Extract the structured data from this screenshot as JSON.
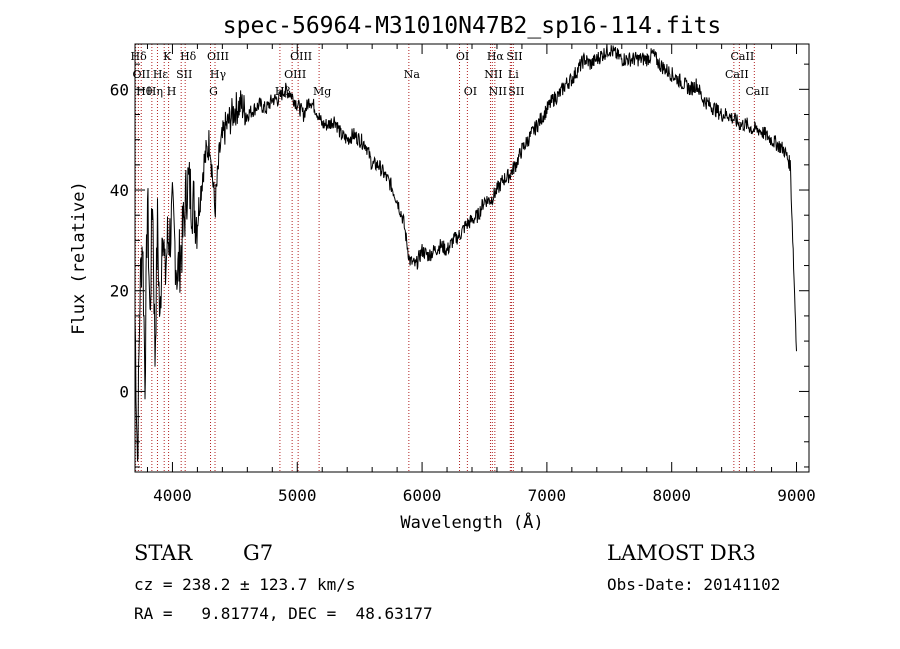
{
  "chart_data": {
    "type": "line",
    "title": "spec-56964-M31010N47B2_sp16-114.fits",
    "xlabel": "Wavelength (Å)",
    "ylabel": "Flux (relative)",
    "xlim": [
      3700,
      9100
    ],
    "ylim": [
      -16,
      69
    ],
    "x_ticks": [
      4000,
      5000,
      6000,
      7000,
      8000,
      9000
    ],
    "x_tick_labels": [
      "4000",
      "5000",
      "6000",
      "7000",
      "8000",
      "9000"
    ],
    "y_ticks": [
      0,
      20,
      40,
      60
    ],
    "y_tick_labels": [
      "0",
      "20",
      "40",
      "60"
    ],
    "series": [
      {
        "name": "spectrum",
        "color": "#000000",
        "x": [
          3700,
          3720,
          3740,
          3760,
          3780,
          3800,
          3820,
          3840,
          3860,
          3880,
          3900,
          3920,
          3940,
          3960,
          3980,
          4000,
          4040,
          4080,
          4120,
          4160,
          4200,
          4250,
          4300,
          4340,
          4380,
          4420,
          4460,
          4500,
          4550,
          4600,
          4650,
          4700,
          4750,
          4800,
          4850,
          4900,
          4950,
          5000,
          5050,
          5100,
          5150,
          5200,
          5250,
          5300,
          5350,
          5400,
          5450,
          5500,
          5550,
          5600,
          5650,
          5700,
          5750,
          5800,
          5850,
          5900,
          5950,
          6000,
          6050,
          6100,
          6150,
          6200,
          6250,
          6300,
          6350,
          6400,
          6450,
          6500,
          6550,
          6600,
          6650,
          6700,
          6750,
          6800,
          6850,
          6900,
          6950,
          7000,
          7050,
          7100,
          7150,
          7200,
          7250,
          7300,
          7350,
          7400,
          7450,
          7500,
          7550,
          7600,
          7650,
          7700,
          7750,
          7800,
          7850,
          7900,
          7950,
          8000,
          8050,
          8100,
          8150,
          8200,
          8250,
          8300,
          8350,
          8400,
          8450,
          8500,
          8550,
          8600,
          8650,
          8700,
          8750,
          8800,
          8850,
          8900,
          8950,
          9000
        ],
        "y": [
          15,
          -14,
          20,
          31,
          3,
          39,
          14,
          40,
          7,
          33,
          12,
          36,
          22,
          30,
          31,
          35,
          23,
          30,
          42,
          38,
          34,
          45,
          50,
          36,
          48,
          52,
          54,
          56,
          57,
          55,
          56,
          57,
          56,
          58,
          58,
          60,
          59,
          57,
          55,
          58,
          56,
          53,
          53,
          54,
          51,
          50,
          51,
          50,
          49,
          45,
          45,
          43,
          41,
          38,
          34,
          26,
          25,
          28,
          27,
          28,
          29,
          28,
          30,
          31,
          33,
          34,
          35,
          38,
          38,
          40,
          42,
          43,
          45,
          48,
          50,
          52,
          54,
          56,
          58,
          59,
          61,
          62,
          64,
          66,
          65,
          66,
          67,
          68,
          67,
          66,
          66,
          66,
          66,
          66,
          67,
          65,
          64,
          63,
          62,
          61,
          60,
          61,
          58,
          57,
          56,
          55,
          55,
          54,
          53,
          53,
          52,
          52,
          51,
          50,
          49,
          48,
          45,
          8
        ]
      }
    ],
    "line_color": "#b22222",
    "emission_lines": [
      {
        "name": "Hδ",
        "wl": 3705,
        "row": 0
      },
      {
        "name": "OII",
        "wl": 3727,
        "row": 1
      },
      {
        "name": "Hθ",
        "wl": 3750,
        "row": 2
      },
      {
        "name": "Hη",
        "wl": 3835,
        "row": 2
      },
      {
        "name": "Hε",
        "wl": 3880,
        "row": 1
      },
      {
        "name": "K",
        "wl": 3934,
        "row": 0
      },
      {
        "name": "H",
        "wl": 3969,
        "row": 2
      },
      {
        "name": "SII",
        "wl": 4070,
        "row": 1
      },
      {
        "name": "Hδ",
        "wl": 4102,
        "row": 0
      },
      {
        "name": "G",
        "wl": 4305,
        "row": 2
      },
      {
        "name": "OIII",
        "wl": 4341,
        "row": 0
      },
      {
        "name": "Hγ",
        "wl": 4341,
        "row": 1
      },
      {
        "name": "Hβ",
        "wl": 4861,
        "row": 2
      },
      {
        "name": "OIII",
        "wl": 4959,
        "row": 1
      },
      {
        "name": "OIII",
        "wl": 5007,
        "row": 0
      },
      {
        "name": "Mg",
        "wl": 5175,
        "row": 2
      },
      {
        "name": "Na",
        "wl": 5894,
        "row": 1
      },
      {
        "name": "OI",
        "wl": 6300,
        "row": 0
      },
      {
        "name": "OI",
        "wl": 6363,
        "row": 2
      },
      {
        "name": "NII",
        "wl": 6548,
        "row": 1
      },
      {
        "name": "Hα",
        "wl": 6563,
        "row": 0
      },
      {
        "name": "NII",
        "wl": 6583,
        "row": 2
      },
      {
        "name": "Li",
        "wl": 6707,
        "row": 1
      },
      {
        "name": "SII",
        "wl": 6716,
        "row": 0
      },
      {
        "name": "SII",
        "wl": 6731,
        "row": 2
      },
      {
        "name": "CaII",
        "wl": 8498,
        "row": 1
      },
      {
        "name": "CaII",
        "wl": 8542,
        "row": 0
      },
      {
        "name": "CaII",
        "wl": 8662,
        "row": 2
      }
    ]
  },
  "info": {
    "class": "STAR",
    "subclass": "G7",
    "survey": "LAMOST DR3",
    "cz": "cz = 238.2 ± 123.7 km/s",
    "obs_date": "Obs-Date: 20141102",
    "coords": "RA =   9.81774, DEC =  48.63177"
  }
}
